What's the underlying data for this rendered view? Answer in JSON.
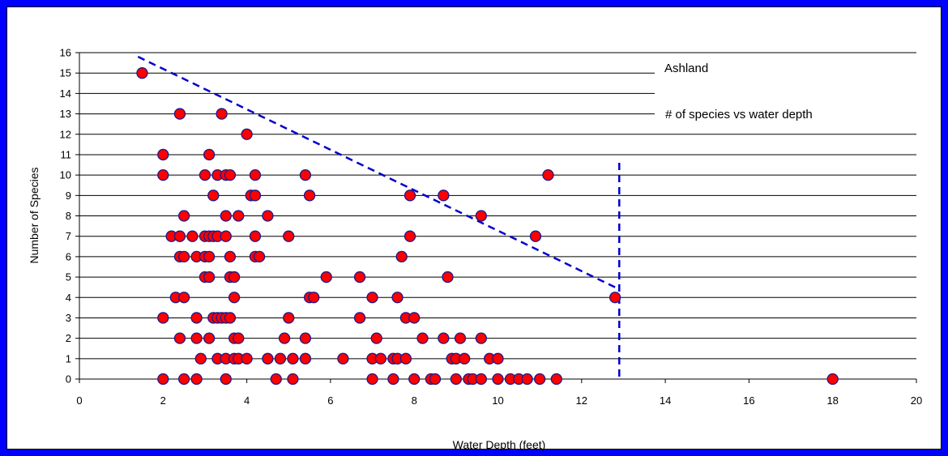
{
  "chart_data": {
    "type": "scatter",
    "title": "",
    "xlabel": "Water Depth (feet)",
    "ylabel": "Number of Species",
    "xlim": [
      0,
      20
    ],
    "ylim": [
      0,
      16
    ],
    "xticks": [
      0,
      2,
      4,
      6,
      8,
      10,
      12,
      14,
      16,
      18,
      20
    ],
    "yticks": [
      0,
      1,
      2,
      3,
      4,
      5,
      6,
      7,
      8,
      9,
      10,
      11,
      12,
      13,
      14,
      15,
      16
    ],
    "grid": "horizontal",
    "annotation_lines": [
      "Ashland",
      "# of species vs water depth"
    ],
    "colors": {
      "marker_fill": "#ff0000",
      "marker_edge": "#1a1a8c",
      "trend_line": "#0000cc",
      "frame": "#0000ff"
    },
    "trend_line": {
      "x": [
        1.4,
        12.9
      ],
      "y": [
        15.8,
        4.4
      ],
      "style": "dashed"
    },
    "vertical_line": {
      "x": 12.9,
      "y": [
        0,
        10.6
      ],
      "style": "dashed"
    },
    "series": [
      {
        "points": [
          [
            1.5,
            15
          ],
          [
            2.4,
            13
          ],
          [
            3.4,
            13
          ],
          [
            4,
            12
          ],
          [
            2,
            11
          ],
          [
            3.1,
            11
          ],
          [
            2,
            10
          ],
          [
            3,
            10
          ],
          [
            3.3,
            10
          ],
          [
            3.5,
            10
          ],
          [
            3.6,
            10
          ],
          [
            4.2,
            10
          ],
          [
            5.4,
            10
          ],
          [
            11.2,
            10
          ],
          [
            3.2,
            9
          ],
          [
            4.1,
            9
          ],
          [
            4.2,
            9
          ],
          [
            5.5,
            9
          ],
          [
            7.9,
            9
          ],
          [
            8.7,
            9
          ],
          [
            2.5,
            8
          ],
          [
            3.5,
            8
          ],
          [
            3.8,
            8
          ],
          [
            4.5,
            8
          ],
          [
            9.6,
            8
          ],
          [
            2.2,
            7
          ],
          [
            2.4,
            7
          ],
          [
            2.7,
            7
          ],
          [
            3,
            7
          ],
          [
            3.1,
            7
          ],
          [
            3.2,
            7
          ],
          [
            3.3,
            7
          ],
          [
            3.5,
            7
          ],
          [
            4.2,
            7
          ],
          [
            5,
            7
          ],
          [
            7.9,
            7
          ],
          [
            10.9,
            7
          ],
          [
            2.4,
            6
          ],
          [
            2.5,
            6
          ],
          [
            2.8,
            6
          ],
          [
            3,
            6
          ],
          [
            3.1,
            6
          ],
          [
            3.6,
            6
          ],
          [
            4.2,
            6
          ],
          [
            4.3,
            6
          ],
          [
            7.7,
            6
          ],
          [
            3,
            5
          ],
          [
            3.1,
            5
          ],
          [
            3.6,
            5
          ],
          [
            3.7,
            5
          ],
          [
            5.9,
            5
          ],
          [
            6.7,
            5
          ],
          [
            8.8,
            5
          ],
          [
            2.3,
            4
          ],
          [
            2.5,
            4
          ],
          [
            3.7,
            4
          ],
          [
            5.5,
            4
          ],
          [
            5.6,
            4
          ],
          [
            7,
            4
          ],
          [
            7.6,
            4
          ],
          [
            12.8,
            4
          ],
          [
            2,
            3
          ],
          [
            2.8,
            3
          ],
          [
            3.2,
            3
          ],
          [
            3.3,
            3
          ],
          [
            3.4,
            3
          ],
          [
            3.5,
            3
          ],
          [
            3.6,
            3
          ],
          [
            5,
            3
          ],
          [
            6.7,
            3
          ],
          [
            7.8,
            3
          ],
          [
            8,
            3
          ],
          [
            2.4,
            2
          ],
          [
            2.8,
            2
          ],
          [
            3.1,
            2
          ],
          [
            3.7,
            2
          ],
          [
            3.8,
            2
          ],
          [
            4.9,
            2
          ],
          [
            5.4,
            2
          ],
          [
            7.1,
            2
          ],
          [
            8.2,
            2
          ],
          [
            8.7,
            2
          ],
          [
            9.1,
            2
          ],
          [
            9.6,
            2
          ],
          [
            2.9,
            1
          ],
          [
            3.3,
            1
          ],
          [
            3.5,
            1
          ],
          [
            3.7,
            1
          ],
          [
            3.8,
            1
          ],
          [
            4,
            1
          ],
          [
            4.5,
            1
          ],
          [
            4.8,
            1
          ],
          [
            5.1,
            1
          ],
          [
            5.4,
            1
          ],
          [
            6.3,
            1
          ],
          [
            7,
            1
          ],
          [
            7.2,
            1
          ],
          [
            7.5,
            1
          ],
          [
            7.6,
            1
          ],
          [
            7.8,
            1
          ],
          [
            8.9,
            1
          ],
          [
            9,
            1
          ],
          [
            9.2,
            1
          ],
          [
            9.8,
            1
          ],
          [
            10,
            1
          ],
          [
            2,
            0
          ],
          [
            2.5,
            0
          ],
          [
            2.8,
            0
          ],
          [
            3.5,
            0
          ],
          [
            4.7,
            0
          ],
          [
            5.1,
            0
          ],
          [
            7,
            0
          ],
          [
            7.5,
            0
          ],
          [
            8,
            0
          ],
          [
            8.4,
            0
          ],
          [
            8.5,
            0
          ],
          [
            9,
            0
          ],
          [
            9.3,
            0
          ],
          [
            9.4,
            0
          ],
          [
            9.6,
            0
          ],
          [
            10,
            0
          ],
          [
            10.3,
            0
          ],
          [
            10.5,
            0
          ],
          [
            10.7,
            0
          ],
          [
            11,
            0
          ],
          [
            11.4,
            0
          ],
          [
            18,
            0
          ]
        ]
      }
    ]
  }
}
